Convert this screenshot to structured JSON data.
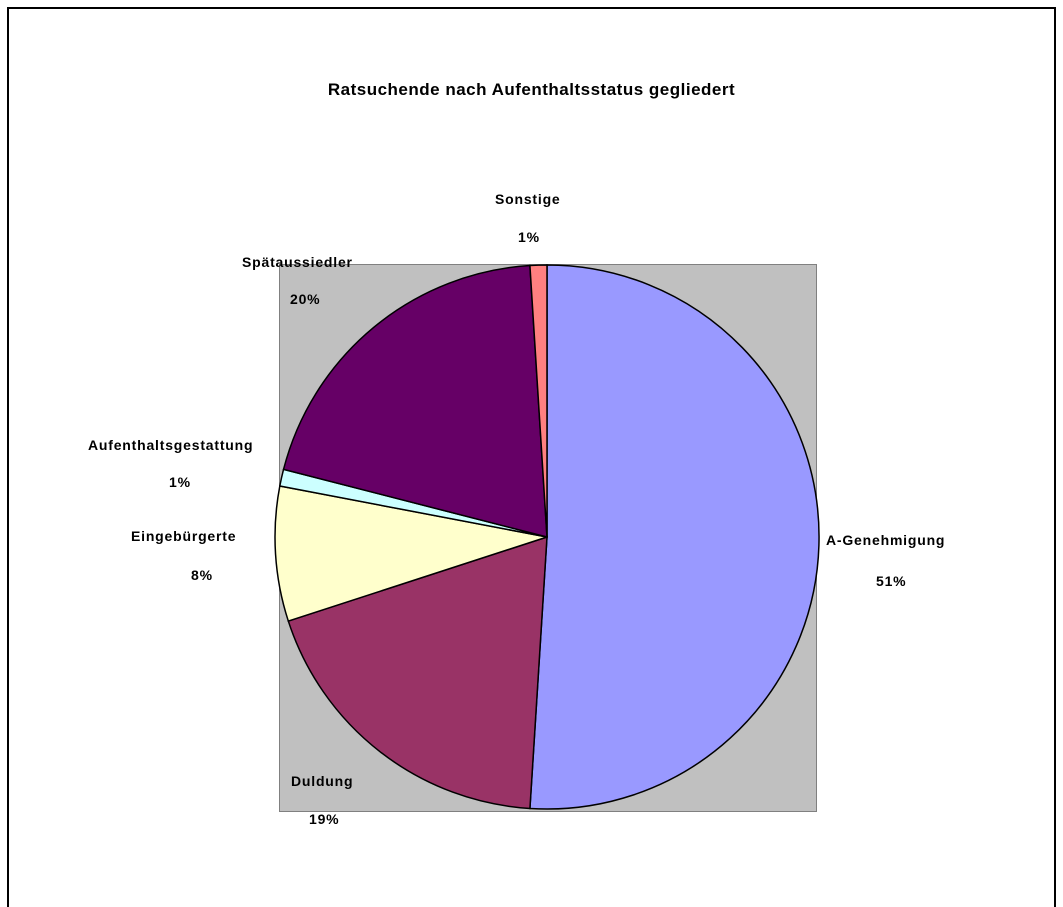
{
  "chart_data": {
    "type": "pie",
    "title": "Ratsuchende nach Aufenthaltsstatus gegliedert",
    "slices": [
      {
        "label": "A-Genehmigung",
        "value": 51,
        "value_label": "51%",
        "color": "#9999ff"
      },
      {
        "label": "Duldung",
        "value": 19,
        "value_label": "19%",
        "color": "#993366"
      },
      {
        "label": "Eingebürgerte",
        "value": 8,
        "value_label": "8%",
        "color": "#ffffcc"
      },
      {
        "label": "Aufenthaltsgestattung",
        "value": 1,
        "value_label": "1%",
        "color": "#ccffff"
      },
      {
        "label": "Spätaussiedler",
        "value": 20,
        "value_label": "20%",
        "color": "#660066"
      },
      {
        "label": "Sonstige",
        "value": 1,
        "value_label": "1%",
        "color": "#ff8080"
      }
    ],
    "plot_background": "#c0c0c0",
    "legend": "none"
  }
}
